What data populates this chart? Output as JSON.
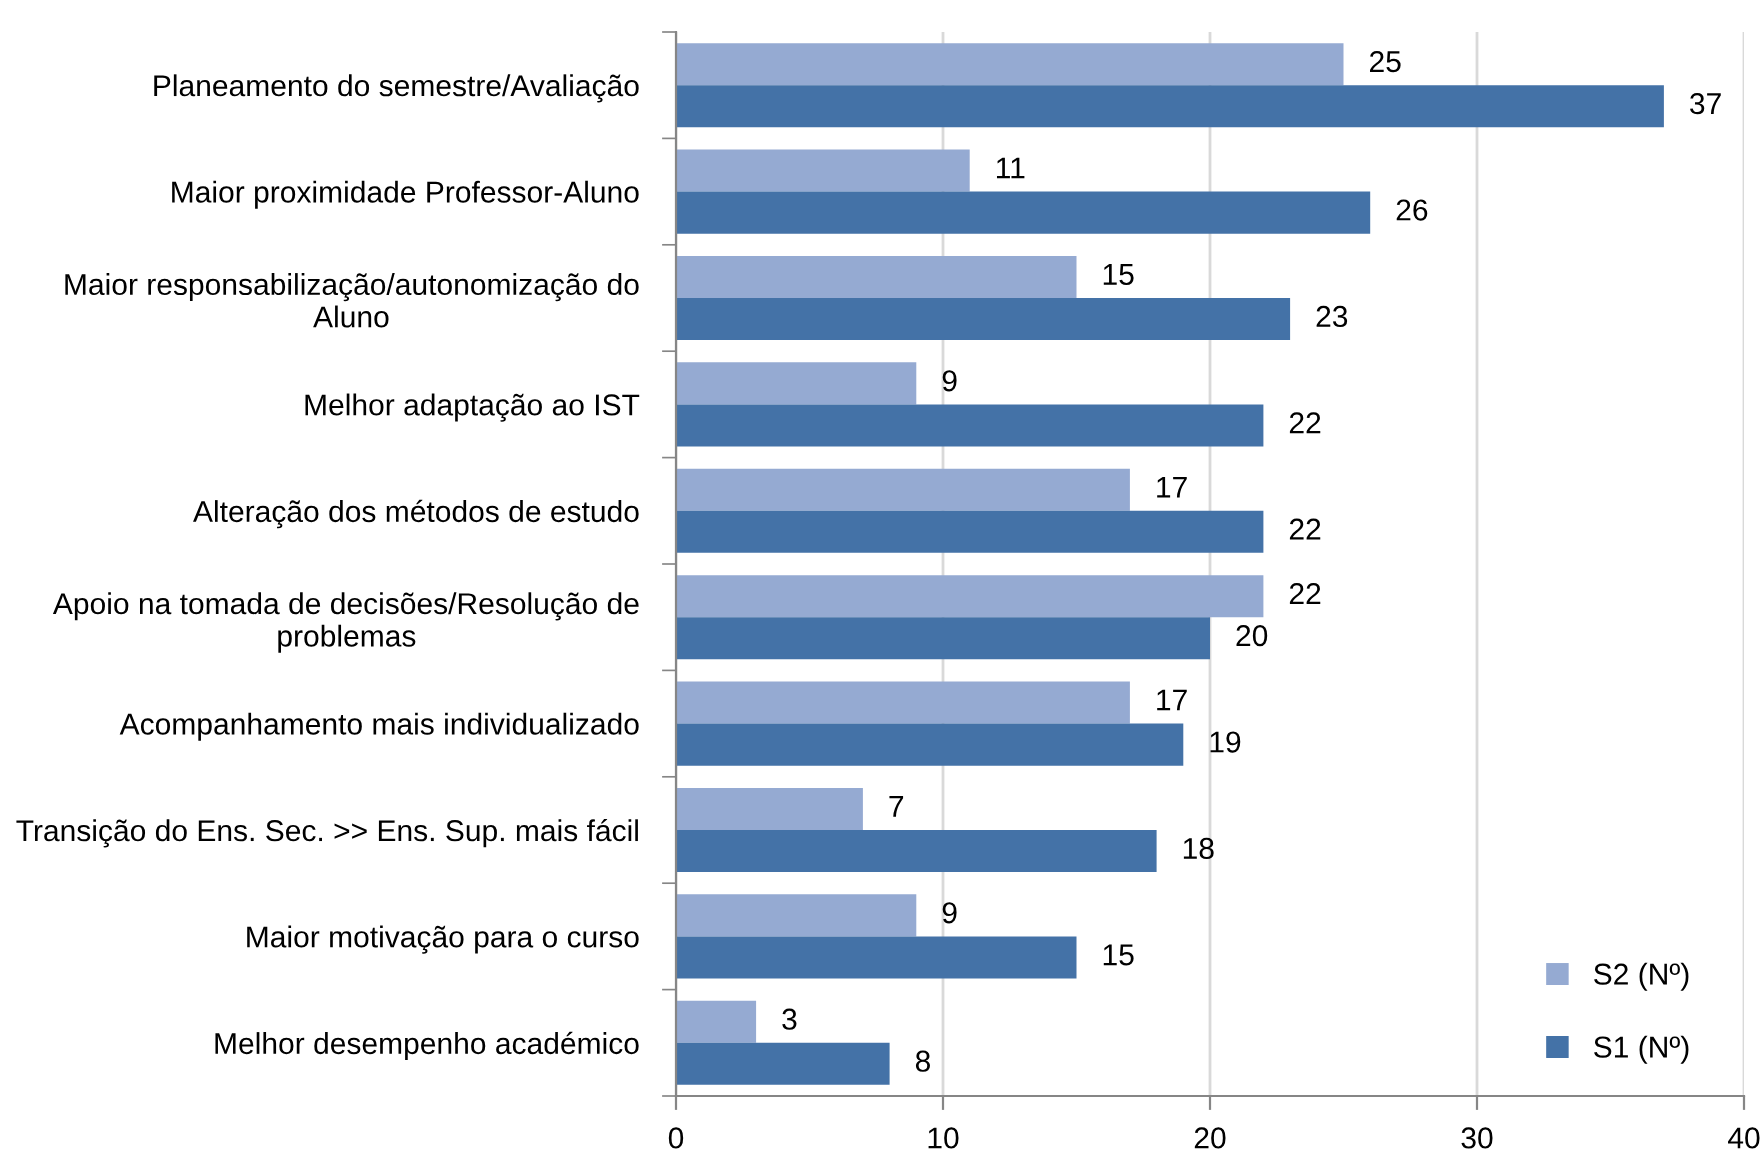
{
  "chart_data": {
    "type": "bar",
    "orientation": "horizontal",
    "categories": [
      "Planeamento do semestre/Avaliação",
      "Maior proximidade Professor-Aluno",
      "Maior responsabilização/autonomização do\nAluno",
      "Melhor adaptação ao IST",
      "Alteração dos métodos de estudo",
      "Apoio na tomada de decisões/Resolução de\nproblemas",
      "Acompanhamento mais individualizado",
      "Transição do Ens. Sec. >> Ens. Sup. mais fácil",
      "Maior motivação para o curso",
      "Melhor desempenho académico"
    ],
    "series": [
      {
        "name": "S2 (Nº)",
        "color": "#95aad2",
        "values": [
          25,
          11,
          15,
          9,
          17,
          22,
          17,
          7,
          9,
          3
        ]
      },
      {
        "name": "S1 (Nº)",
        "color": "#4472a7",
        "values": [
          37,
          26,
          23,
          22,
          22,
          20,
          19,
          18,
          15,
          8
        ]
      }
    ],
    "xlim": [
      0,
      40
    ],
    "xticks": [
      0,
      10,
      20,
      30,
      40
    ],
    "grid": "x",
    "legend": "bottom right",
    "data_labels": true
  }
}
